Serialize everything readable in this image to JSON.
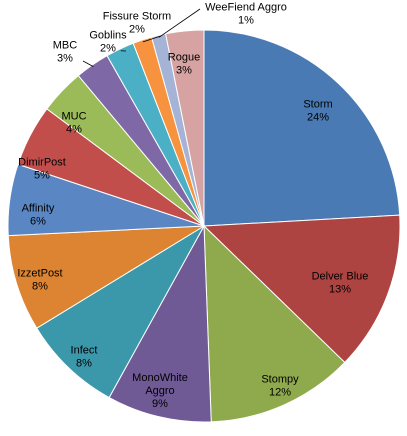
{
  "chart_data": {
    "type": "pie",
    "title": "",
    "start_angle_deg": 0,
    "direction": "clockwise",
    "slices": [
      {
        "name": "Storm",
        "label": "24%",
        "value": 24.6,
        "color": "#4a7ab4"
      },
      {
        "name": "Delver Blue",
        "label": "13%",
        "value": 13.4,
        "color": "#ae4441"
      },
      {
        "name": "Stompy",
        "label": "12%",
        "value": 12.4,
        "color": "#8faa4c"
      },
      {
        "name": "MonoWhite Aggro",
        "label": "9%",
        "value": 8.8,
        "color": "#6f5a95"
      },
      {
        "name": "Infect",
        "label": "8%",
        "value": 8.4,
        "color": "#3b98ab"
      },
      {
        "name": "IzzetPost",
        "label": "8%",
        "value": 8.1,
        "color": "#dc8432"
      },
      {
        "name": "Affinity",
        "label": "6%",
        "value": 6.0,
        "color": "#5a86c3"
      },
      {
        "name": "DimirPost",
        "label": "5%",
        "value": 5.2,
        "color": "#c24e4c"
      },
      {
        "name": "MUC",
        "label": "4%",
        "value": 3.8,
        "color": "#9abb58"
      },
      {
        "name": "MBC",
        "label": "3%",
        "value": 2.9,
        "color": "#7e68a5"
      },
      {
        "name": "Goblins",
        "label": "2%",
        "value": 2.4,
        "color": "#4bb0c6"
      },
      {
        "name": "Fissure Storm",
        "label": "2%",
        "value": 1.6,
        "color": "#f7923e"
      },
      {
        "name": "WeeFiend Aggro",
        "label": "1%",
        "value": 1.2,
        "color": "#a4b3d6"
      },
      {
        "name": "Rogue",
        "label": "3%",
        "value": 3.2,
        "color": "#d6a3a2"
      }
    ]
  }
}
